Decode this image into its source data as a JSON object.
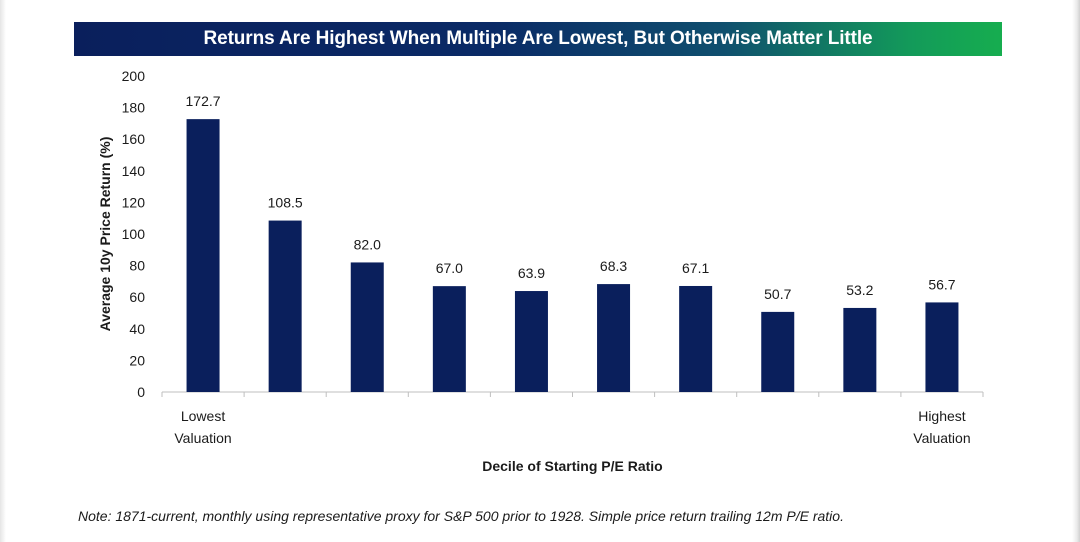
{
  "colors": {
    "bar": "#0a1f5c",
    "title_text": "#ffffff",
    "axis": "#bfbfbf",
    "text": "#1b1b1b"
  },
  "chart_data": {
    "type": "bar",
    "title": "Returns Are Highest When Multiple Are Lowest, But Otherwise Matter Little",
    "xlabel": "Decile of Starting P/E Ratio",
    "ylabel": "Average 10y Price Return (%)",
    "ylim": [
      0,
      200
    ],
    "yticks": [
      0,
      20,
      40,
      60,
      80,
      100,
      120,
      140,
      160,
      180,
      200
    ],
    "grid": false,
    "categories": [
      "Lowest Valuation",
      "",
      "",
      "",
      "",
      "",
      "",
      "",
      "",
      "Highest Valuation"
    ],
    "values": [
      172.7,
      108.5,
      82.0,
      67.0,
      63.9,
      68.3,
      67.1,
      50.7,
      53.2,
      56.7
    ],
    "data_labels": [
      "172.7",
      "108.5",
      "82.0",
      "67.0",
      "63.9",
      "68.3",
      "67.1",
      "50.7",
      "53.2",
      "56.7"
    ],
    "x_tick_labels": [
      [
        "Lowest",
        "Valuation"
      ],
      [],
      [],
      [],
      [],
      [],
      [],
      [],
      [],
      [
        "Highest",
        "Valuation"
      ]
    ]
  },
  "note": "Note: 1871-current, monthly using representative proxy for S&P 500 prior to 1928. Simple price return trailing 12m P/E ratio."
}
